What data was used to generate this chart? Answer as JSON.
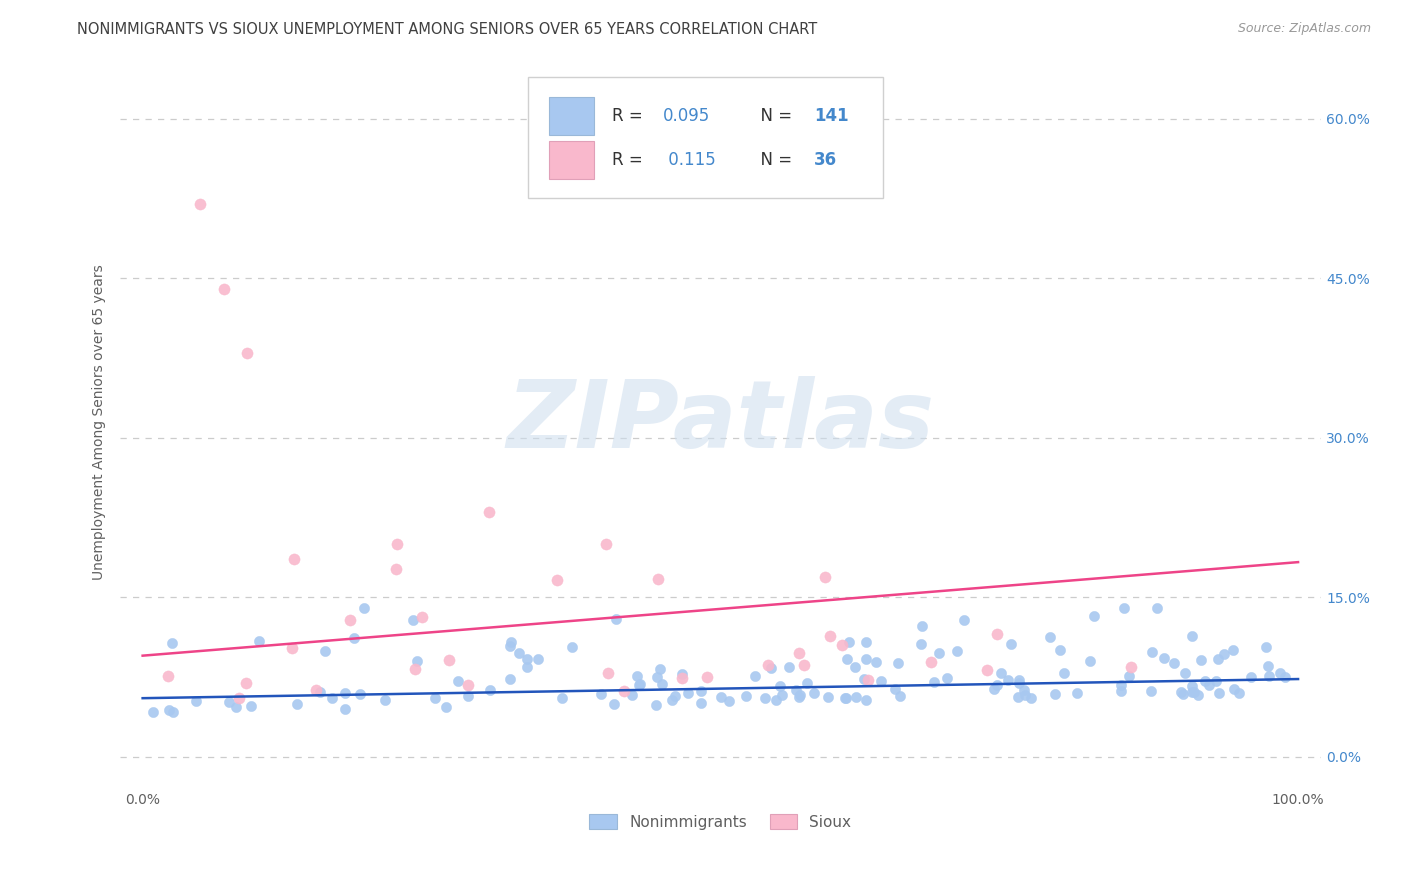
{
  "title": "NONIMMIGRANTS VS SIOUX UNEMPLOYMENT AMONG SENIORS OVER 65 YEARS CORRELATION CHART",
  "source": "Source: ZipAtlas.com",
  "ylabel": "Unemployment Among Seniors over 65 years",
  "xlim": [
    -0.02,
    1.02
  ],
  "ylim": [
    -0.03,
    0.66
  ],
  "xtick_positions": [
    0.0,
    1.0
  ],
  "xtick_labels": [
    "0.0%",
    "100.0%"
  ],
  "ytick_values": [
    0.0,
    0.15,
    0.3,
    0.45,
    0.6
  ],
  "ytick_labels": [
    "0.0%",
    "15.0%",
    "30.0%",
    "45.0%",
    "60.0%"
  ],
  "R_nonimm": 0.095,
  "N_nonimm": 141,
  "R_sioux": 0.115,
  "N_sioux": 36,
  "nonimm_scatter_color": "#a8c8f0",
  "sioux_scatter_color": "#f9b8cc",
  "nonimm_line_color": "#2255bb",
  "sioux_line_color": "#ee4488",
  "nonimm_line_intercept": 0.055,
  "nonimm_line_slope": 0.018,
  "sioux_line_intercept": 0.095,
  "sioux_line_slope": 0.088,
  "watermark_text": "ZIPatlas",
  "watermark_color": "#ccddee",
  "background_color": "#ffffff",
  "grid_color": "#cccccc",
  "title_color": "#404040",
  "axis_label_color": "#606060",
  "right_tick_color": "#4488cc",
  "legend_value_color": "#4488cc",
  "legend_label_color": "#333333"
}
